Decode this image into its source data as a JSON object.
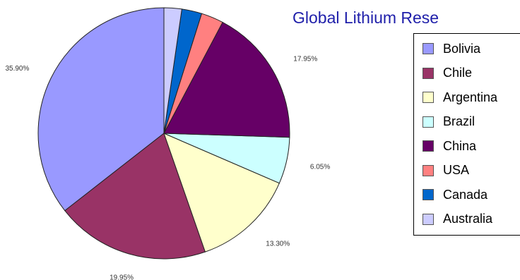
{
  "title": "Global Lithium Rese",
  "chart_data": {
    "type": "pie",
    "title": "Global Lithium Rese",
    "slices": [
      {
        "name": "Bolivia",
        "value": 35.9,
        "label": "35.90%",
        "color": "#9999ff"
      },
      {
        "name": "Chile",
        "value": 19.95,
        "label": "19.95%",
        "color": "#993366"
      },
      {
        "name": "Argentina",
        "value": 13.3,
        "label": "13.30%",
        "color": "#ffffcc"
      },
      {
        "name": "Brazil",
        "value": 6.05,
        "label": "6.05%",
        "color": "#ccffff"
      },
      {
        "name": "China",
        "value": 17.95,
        "label": "17.95%",
        "color": "#660066"
      },
      {
        "name": "USA",
        "value": 2.9,
        "label": "",
        "color": "#ff8080"
      },
      {
        "name": "Canada",
        "value": 2.6,
        "label": "",
        "color": "#0066cc"
      },
      {
        "name": "Australia",
        "value": 2.3,
        "label": "",
        "color": "#ccccff"
      }
    ],
    "legend_position": "right"
  }
}
